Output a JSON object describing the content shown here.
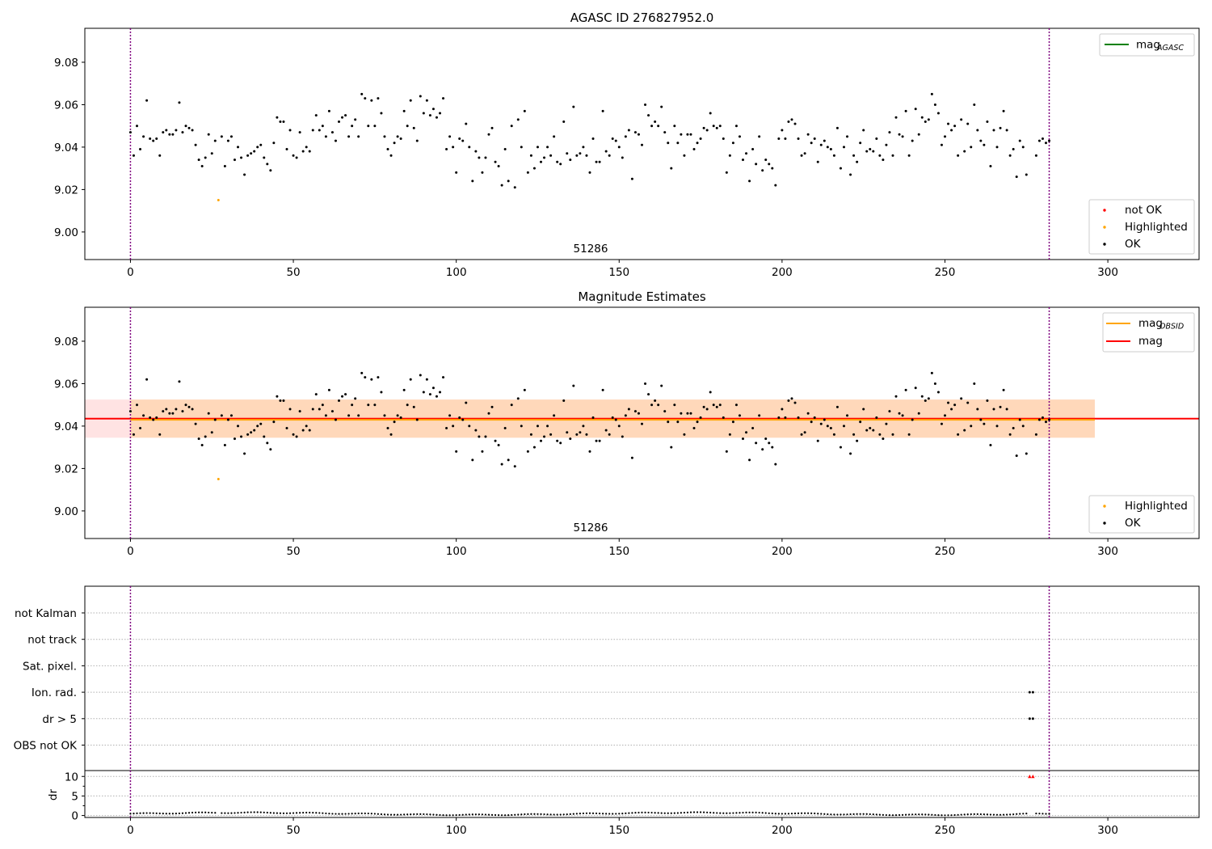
{
  "chart_data": [
    {
      "type": "scatter",
      "title": "AGASC ID 276827952.0",
      "annotation": "51286",
      "xticks": [
        0,
        50,
        100,
        150,
        200,
        250,
        300
      ],
      "xlim": [
        -14,
        328
      ],
      "ylim": [
        8.987,
        9.096
      ],
      "yticks": [
        9.0,
        9.02,
        9.04,
        9.06,
        9.08
      ],
      "ytick_labels": [
        "9.00",
        "9.02",
        "9.04",
        "9.06",
        "9.08"
      ],
      "vlines": [
        0,
        282
      ],
      "legend_upper": [
        {
          "label": "mag",
          "sub": "AGASC",
          "color": "#008000"
        }
      ],
      "legend_lower": [
        {
          "label": "not OK",
          "color": "#ff0000"
        },
        {
          "label": "Highlighted",
          "color": "#ffa500"
        },
        {
          "label": "OK",
          "color": "#000000"
        }
      ],
      "highlighted_points": [
        [
          27,
          9.015
        ]
      ],
      "ok_points": [
        [
          0,
          9.047
        ],
        [
          1,
          9.036
        ],
        [
          2,
          9.05
        ],
        [
          3,
          9.039
        ],
        [
          4,
          9.045
        ],
        [
          5,
          9.062
        ],
        [
          6,
          9.044
        ],
        [
          7,
          9.043
        ],
        [
          8,
          9.044
        ],
        [
          9,
          9.036
        ],
        [
          10,
          9.047
        ],
        [
          11,
          9.048
        ],
        [
          12,
          9.046
        ],
        [
          13,
          9.046
        ],
        [
          14,
          9.048
        ],
        [
          15,
          9.061
        ],
        [
          16,
          9.047
        ],
        [
          17,
          9.05
        ],
        [
          18,
          9.049
        ],
        [
          19,
          9.048
        ],
        [
          20,
          9.041
        ],
        [
          21,
          9.034
        ],
        [
          22,
          9.031
        ],
        [
          23,
          9.035
        ],
        [
          24,
          9.046
        ],
        [
          25,
          9.037
        ],
        [
          26,
          9.043
        ],
        [
          28,
          9.045
        ],
        [
          29,
          9.031
        ],
        [
          30,
          9.043
        ],
        [
          31,
          9.045
        ],
        [
          32,
          9.034
        ],
        [
          33,
          9.04
        ],
        [
          34,
          9.035
        ],
        [
          35,
          9.027
        ],
        [
          36,
          9.036
        ],
        [
          37,
          9.037
        ],
        [
          38,
          9.038
        ],
        [
          39,
          9.04
        ],
        [
          40,
          9.041
        ],
        [
          41,
          9.035
        ],
        [
          42,
          9.032
        ],
        [
          43,
          9.029
        ],
        [
          44,
          9.042
        ],
        [
          45,
          9.054
        ],
        [
          46,
          9.052
        ],
        [
          47,
          9.052
        ],
        [
          48,
          9.039
        ],
        [
          49,
          9.048
        ],
        [
          50,
          9.036
        ],
        [
          51,
          9.035
        ],
        [
          52,
          9.047
        ],
        [
          53,
          9.038
        ],
        [
          54,
          9.04
        ],
        [
          55,
          9.038
        ],
        [
          56,
          9.048
        ],
        [
          57,
          9.055
        ],
        [
          58,
          9.048
        ],
        [
          59,
          9.05
        ],
        [
          60,
          9.045
        ],
        [
          61,
          9.057
        ],
        [
          62,
          9.047
        ],
        [
          63,
          9.043
        ],
        [
          64,
          9.052
        ],
        [
          65,
          9.054
        ],
        [
          66,
          9.055
        ],
        [
          67,
          9.045
        ],
        [
          68,
          9.05
        ],
        [
          69,
          9.053
        ],
        [
          70,
          9.045
        ],
        [
          71,
          9.065
        ],
        [
          72,
          9.063
        ],
        [
          73,
          9.05
        ],
        [
          74,
          9.062
        ],
        [
          75,
          9.05
        ],
        [
          76,
          9.063
        ],
        [
          77,
          9.056
        ],
        [
          78,
          9.045
        ],
        [
          79,
          9.039
        ],
        [
          80,
          9.036
        ],
        [
          81,
          9.042
        ],
        [
          82,
          9.045
        ],
        [
          83,
          9.044
        ],
        [
          84,
          9.057
        ],
        [
          85,
          9.05
        ],
        [
          86,
          9.062
        ],
        [
          87,
          9.049
        ],
        [
          88,
          9.043
        ],
        [
          89,
          9.064
        ],
        [
          90,
          9.056
        ],
        [
          91,
          9.062
        ],
        [
          92,
          9.055
        ],
        [
          93,
          9.058
        ],
        [
          94,
          9.054
        ],
        [
          95,
          9.056
        ],
        [
          96,
          9.063
        ],
        [
          97,
          9.039
        ],
        [
          98,
          9.045
        ],
        [
          99,
          9.04
        ],
        [
          100,
          9.028
        ],
        [
          101,
          9.044
        ],
        [
          102,
          9.043
        ],
        [
          103,
          9.051
        ],
        [
          104,
          9.04
        ],
        [
          105,
          9.024
        ],
        [
          106,
          9.038
        ],
        [
          107,
          9.035
        ],
        [
          108,
          9.028
        ],
        [
          109,
          9.035
        ],
        [
          110,
          9.046
        ],
        [
          111,
          9.049
        ],
        [
          112,
          9.033
        ],
        [
          113,
          9.031
        ],
        [
          114,
          9.022
        ],
        [
          115,
          9.039
        ],
        [
          116,
          9.024
        ],
        [
          117,
          9.05
        ],
        [
          118,
          9.021
        ],
        [
          119,
          9.053
        ],
        [
          120,
          9.04
        ],
        [
          121,
          9.057
        ],
        [
          122,
          9.028
        ],
        [
          123,
          9.036
        ],
        [
          124,
          9.03
        ],
        [
          125,
          9.04
        ],
        [
          126,
          9.033
        ],
        [
          127,
          9.035
        ],
        [
          128,
          9.04
        ],
        [
          129,
          9.036
        ],
        [
          130,
          9.045
        ],
        [
          131,
          9.033
        ],
        [
          132,
          9.032
        ],
        [
          133,
          9.052
        ],
        [
          134,
          9.037
        ],
        [
          135,
          9.034
        ],
        [
          136,
          9.059
        ],
        [
          137,
          9.036
        ],
        [
          138,
          9.037
        ],
        [
          139,
          9.04
        ],
        [
          140,
          9.036
        ],
        [
          141,
          9.028
        ],
        [
          142,
          9.044
        ],
        [
          143,
          9.033
        ],
        [
          144,
          9.033
        ],
        [
          145,
          9.057
        ],
        [
          146,
          9.038
        ],
        [
          147,
          9.036
        ],
        [
          148,
          9.044
        ],
        [
          149,
          9.043
        ],
        [
          150,
          9.04
        ],
        [
          151,
          9.035
        ],
        [
          152,
          9.045
        ],
        [
          153,
          9.048
        ],
        [
          154,
          9.025
        ],
        [
          155,
          9.047
        ],
        [
          156,
          9.046
        ],
        [
          157,
          9.041
        ],
        [
          158,
          9.06
        ],
        [
          159,
          9.055
        ],
        [
          160,
          9.05
        ],
        [
          161,
          9.052
        ],
        [
          162,
          9.05
        ],
        [
          163,
          9.059
        ],
        [
          164,
          9.047
        ],
        [
          165,
          9.042
        ],
        [
          166,
          9.03
        ],
        [
          167,
          9.05
        ],
        [
          168,
          9.042
        ],
        [
          169,
          9.046
        ],
        [
          170,
          9.036
        ],
        [
          171,
          9.046
        ],
        [
          172,
          9.046
        ],
        [
          173,
          9.039
        ],
        [
          174,
          9.042
        ],
        [
          175,
          9.044
        ],
        [
          176,
          9.049
        ],
        [
          177,
          9.048
        ],
        [
          178,
          9.056
        ],
        [
          179,
          9.05
        ],
        [
          180,
          9.049
        ],
        [
          181,
          9.05
        ],
        [
          182,
          9.044
        ],
        [
          183,
          9.028
        ],
        [
          184,
          9.036
        ],
        [
          185,
          9.042
        ],
        [
          186,
          9.05
        ],
        [
          187,
          9.045
        ],
        [
          188,
          9.034
        ],
        [
          189,
          9.037
        ],
        [
          190,
          9.024
        ],
        [
          191,
          9.039
        ],
        [
          192,
          9.032
        ],
        [
          193,
          9.045
        ],
        [
          194,
          9.029
        ],
        [
          195,
          9.034
        ],
        [
          196,
          9.032
        ],
        [
          197,
          9.03
        ],
        [
          198,
          9.022
        ],
        [
          199,
          9.044
        ],
        [
          200,
          9.048
        ],
        [
          201,
          9.044
        ],
        [
          202,
          9.052
        ],
        [
          203,
          9.053
        ],
        [
          204,
          9.051
        ],
        [
          205,
          9.044
        ],
        [
          206,
          9.036
        ],
        [
          207,
          9.037
        ],
        [
          208,
          9.046
        ],
        [
          209,
          9.042
        ],
        [
          210,
          9.044
        ],
        [
          211,
          9.033
        ],
        [
          212,
          9.041
        ],
        [
          213,
          9.043
        ],
        [
          214,
          9.04
        ],
        [
          215,
          9.039
        ],
        [
          216,
          9.036
        ],
        [
          217,
          9.049
        ],
        [
          218,
          9.03
        ],
        [
          219,
          9.04
        ],
        [
          220,
          9.045
        ],
        [
          221,
          9.027
        ],
        [
          222,
          9.036
        ],
        [
          223,
          9.033
        ],
        [
          224,
          9.042
        ],
        [
          225,
          9.048
        ],
        [
          226,
          9.038
        ],
        [
          227,
          9.039
        ],
        [
          228,
          9.038
        ],
        [
          229,
          9.044
        ],
        [
          230,
          9.036
        ],
        [
          231,
          9.034
        ],
        [
          232,
          9.041
        ],
        [
          233,
          9.047
        ],
        [
          234,
          9.036
        ],
        [
          235,
          9.054
        ],
        [
          236,
          9.046
        ],
        [
          237,
          9.045
        ],
        [
          238,
          9.057
        ],
        [
          239,
          9.036
        ],
        [
          240,
          9.043
        ],
        [
          241,
          9.058
        ],
        [
          242,
          9.046
        ],
        [
          243,
          9.054
        ],
        [
          244,
          9.052
        ],
        [
          245,
          9.053
        ],
        [
          246,
          9.065
        ],
        [
          247,
          9.06
        ],
        [
          248,
          9.056
        ],
        [
          249,
          9.041
        ],
        [
          250,
          9.045
        ],
        [
          251,
          9.051
        ],
        [
          252,
          9.048
        ],
        [
          253,
          9.05
        ],
        [
          254,
          9.036
        ],
        [
          255,
          9.053
        ],
        [
          256,
          9.038
        ],
        [
          257,
          9.051
        ],
        [
          258,
          9.04
        ],
        [
          259,
          9.06
        ],
        [
          260,
          9.048
        ],
        [
          261,
          9.043
        ],
        [
          262,
          9.041
        ],
        [
          263,
          9.052
        ],
        [
          264,
          9.031
        ],
        [
          265,
          9.048
        ],
        [
          266,
          9.04
        ],
        [
          267,
          9.049
        ],
        [
          268,
          9.057
        ],
        [
          269,
          9.048
        ],
        [
          270,
          9.036
        ],
        [
          271,
          9.039
        ],
        [
          272,
          9.026
        ],
        [
          273,
          9.043
        ],
        [
          274,
          9.04
        ],
        [
          275,
          9.027
        ],
        [
          278,
          9.036
        ],
        [
          279,
          9.043
        ],
        [
          280,
          9.044
        ],
        [
          281,
          9.042
        ],
        [
          282,
          9.043
        ]
      ]
    },
    {
      "type": "scatter",
      "title": "Magnitude Estimates",
      "annotation": "51286",
      "xticks": [
        0,
        50,
        100,
        150,
        200,
        250,
        300
      ],
      "xlim": [
        -14,
        328
      ],
      "ylim": [
        8.987,
        9.096
      ],
      "yticks": [
        9.0,
        9.02,
        9.04,
        9.06,
        9.08
      ],
      "ytick_labels": [
        "9.00",
        "9.02",
        "9.04",
        "9.06",
        "9.08"
      ],
      "vlines": [
        0,
        282
      ],
      "mag_line": 9.0435,
      "mag_band": [
        9.0345,
        9.0525
      ],
      "mag_obsid_line": 9.043,
      "band_xrange": [
        -14,
        296
      ],
      "obsid_band_xrange": [
        0,
        296
      ],
      "legend_upper": [
        {
          "label": "mag",
          "sub": "OBSID",
          "color": "#ffa500"
        },
        {
          "label": "mag",
          "sub": "",
          "color": "#ff0000"
        }
      ],
      "legend_lower": [
        {
          "label": "Highlighted",
          "color": "#ffa500"
        },
        {
          "label": "OK",
          "color": "#000000"
        }
      ]
    },
    {
      "type": "scatter",
      "title": "",
      "xticks": [
        0,
        50,
        100,
        150,
        200,
        250,
        300
      ],
      "xlim": [
        -14,
        328
      ],
      "vlines": [
        0,
        282
      ],
      "flag_rows": [
        "not Kalman",
        "not track",
        "Sat. pixel.",
        "Ion. rad.",
        "dr > 5",
        "OBS not OK"
      ],
      "flag_points": [
        {
          "row": "Ion. rad.",
          "x": [
            276,
            277
          ]
        },
        {
          "row": "dr > 5",
          "x": [
            276,
            277
          ]
        }
      ]
    },
    {
      "type": "scatter",
      "title": "",
      "ylabel": "dr",
      "xticks": [
        0,
        50,
        100,
        150,
        200,
        250,
        300
      ],
      "xlim": [
        -14,
        328
      ],
      "ylim": [
        -0.5,
        11.5
      ],
      "yticks": [
        0,
        5,
        10
      ],
      "ytick_labels": [
        "0",
        "5",
        "10"
      ],
      "vlines": [
        0,
        282
      ],
      "clipped_points": [
        276,
        277
      ],
      "clipped_value": 10
    }
  ]
}
